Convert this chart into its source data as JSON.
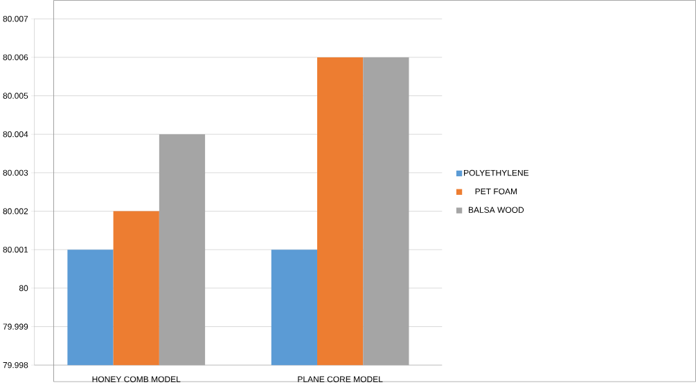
{
  "chart_data": {
    "type": "bar",
    "categories": [
      "HONEY COMB MODEL",
      "PLANE CORE MODEL"
    ],
    "series": [
      {
        "name": "POLYETHYLENE",
        "color": "#5b9bd5",
        "values": [
          80.001,
          80.001
        ]
      },
      {
        "name": "PET FOAM",
        "color": "#ed7d31",
        "values": [
          80.002,
          80.006
        ]
      },
      {
        "name": "BALSA WOOD",
        "color": "#a5a5a5",
        "values": [
          80.004,
          80.006
        ]
      }
    ],
    "ylim": [
      79.998,
      80.007
    ],
    "yticks": [
      79.998,
      79.999,
      80,
      80.001,
      80.002,
      80.003,
      80.004,
      80.005,
      80.006,
      80.007
    ],
    "grid": "y",
    "legend": "right"
  }
}
